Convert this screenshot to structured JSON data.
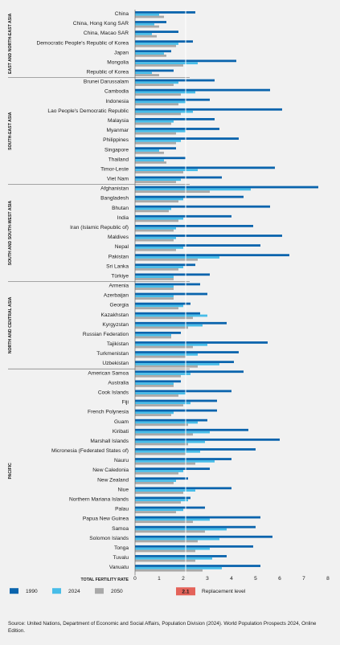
{
  "chart_data": {
    "type": "bar",
    "orientation": "horizontal",
    "xlabel": "TOTAL FERTILITY RATE",
    "xlim": [
      0,
      8
    ],
    "xticks": [
      0,
      1,
      2,
      3,
      4,
      5,
      6,
      7,
      8
    ],
    "replacement_level": {
      "value": 2.1,
      "label": "Replacement level",
      "value_label": "2.1"
    },
    "series": [
      {
        "name": "1990",
        "color": "#0a64ad"
      },
      {
        "name": "2024",
        "color": "#48bde8"
      },
      {
        "name": "2050",
        "color": "#a9a9a9"
      }
    ],
    "regions": [
      {
        "name": "EAST AND NORTH-EAST ASIA",
        "countries": [
          {
            "name": "China",
            "values": [
              2.5,
              1.0,
              1.2
            ]
          },
          {
            "name": "China, Hong Kong SAR",
            "values": [
              1.3,
              0.8,
              1.0
            ]
          },
          {
            "name": "China, Macao SAR",
            "values": [
              1.8,
              0.7,
              0.9
            ]
          },
          {
            "name": "Democratic People's Republic of Korea",
            "values": [
              2.4,
              1.8,
              1.7
            ]
          },
          {
            "name": "Japan",
            "values": [
              1.5,
              1.2,
              1.3
            ]
          },
          {
            "name": "Mongolia",
            "values": [
              4.2,
              2.6,
              2.0
            ]
          },
          {
            "name": "Republic of Korea",
            "values": [
              1.6,
              0.7,
              1.0
            ]
          }
        ]
      },
      {
        "name": "SOUTH-EAST ASIA",
        "countries": [
          {
            "name": "Brunei Darussalam",
            "values": [
              3.3,
              1.8,
              1.6
            ]
          },
          {
            "name": "Cambodia",
            "values": [
              5.6,
              2.5,
              1.9
            ]
          },
          {
            "name": "Indonesia",
            "values": [
              3.1,
              2.1,
              1.8
            ]
          },
          {
            "name": "Lao People's Democratic Republic",
            "values": [
              6.1,
              2.4,
              1.9
            ]
          },
          {
            "name": "Malaysia",
            "values": [
              3.3,
              1.6,
              1.5
            ]
          },
          {
            "name": "Myanmar",
            "values": [
              3.5,
              2.1,
              1.7
            ]
          },
          {
            "name": "Philippines",
            "values": [
              4.3,
              1.9,
              1.7
            ]
          },
          {
            "name": "Singapore",
            "values": [
              1.7,
              1.0,
              1.2
            ]
          },
          {
            "name": "Thailand",
            "values": [
              2.1,
              1.2,
              1.3
            ]
          },
          {
            "name": "Timor-Leste",
            "values": [
              5.8,
              2.6,
              2.0
            ]
          },
          {
            "name": "Viet Nam",
            "values": [
              3.6,
              1.9,
              1.7
            ]
          }
        ]
      },
      {
        "name": "SOUTH AND SOUTH-WEST ASIA",
        "countries": [
          {
            "name": "Afghanistan",
            "values": [
              7.6,
              4.8,
              3.1
            ]
          },
          {
            "name": "Bangladesh",
            "values": [
              4.5,
              2.0,
              1.8
            ]
          },
          {
            "name": "Bhutan",
            "values": [
              5.6,
              1.5,
              1.4
            ]
          },
          {
            "name": "India",
            "values": [
              4.0,
              2.0,
              1.8
            ]
          },
          {
            "name": "Iran (Islamic Republic of)",
            "values": [
              4.9,
              1.7,
              1.6
            ]
          },
          {
            "name": "Maldives",
            "values": [
              6.1,
              1.7,
              1.6
            ]
          },
          {
            "name": "Nepal",
            "values": [
              5.2,
              2.0,
              1.7
            ]
          },
          {
            "name": "Pakistan",
            "values": [
              6.4,
              3.5,
              2.6
            ]
          },
          {
            "name": "Sri Lanka",
            "values": [
              2.5,
              2.0,
              1.8
            ]
          },
          {
            "name": "Türkiye",
            "values": [
              3.1,
              1.6,
              1.6
            ]
          }
        ]
      },
      {
        "name": "NORTH AND CENTRAL ASIA",
        "countries": [
          {
            "name": "Armenia",
            "values": [
              2.7,
              1.6,
              1.6
            ]
          },
          {
            "name": "Azerbaijan",
            "values": [
              3.0,
              1.6,
              1.6
            ]
          },
          {
            "name": "Georgia",
            "values": [
              2.3,
              2.0,
              1.8
            ]
          },
          {
            "name": "Kazakhstan",
            "values": [
              2.7,
              3.0,
              2.4
            ]
          },
          {
            "name": "Kyrgyzstan",
            "values": [
              3.8,
              2.8,
              2.2
            ]
          },
          {
            "name": "Russian Federation",
            "values": [
              1.9,
              1.5,
              1.5
            ]
          },
          {
            "name": "Tajikistan",
            "values": [
              5.5,
              3.0,
              2.4
            ]
          },
          {
            "name": "Turkmenistan",
            "values": [
              4.3,
              2.6,
              2.1
            ]
          },
          {
            "name": "Uzbekistan",
            "values": [
              4.1,
              3.5,
              2.6
            ]
          }
        ]
      },
      {
        "name": "PACIFIC",
        "countries": [
          {
            "name": "American Samoa",
            "values": [
              4.5,
              2.3,
              1.9
            ]
          },
          {
            "name": "Australia",
            "values": [
              1.9,
              1.6,
              1.6
            ]
          },
          {
            "name": "Cook Islands",
            "values": [
              4.0,
              2.1,
              1.8
            ]
          },
          {
            "name": "Fiji",
            "values": [
              3.4,
              2.3,
              2.0
            ]
          },
          {
            "name": "French Polynesia",
            "values": [
              3.4,
              1.6,
              1.5
            ]
          },
          {
            "name": "Guam",
            "values": [
              3.0,
              2.6,
              2.2
            ]
          },
          {
            "name": "Kiribati",
            "values": [
              4.7,
              3.1,
              2.4
            ]
          },
          {
            "name": "Marshall Islands",
            "values": [
              6.0,
              2.9,
              2.2
            ]
          },
          {
            "name": "Micronesia (Federated States of)",
            "values": [
              5.0,
              2.7,
              2.1
            ]
          },
          {
            "name": "Nauru",
            "values": [
              4.0,
              3.3,
              2.5
            ]
          },
          {
            "name": "New Caledonia",
            "values": [
              3.1,
              2.0,
              1.8
            ]
          },
          {
            "name": "New Zealand",
            "values": [
              2.2,
              1.7,
              1.6
            ]
          },
          {
            "name": "Niue",
            "values": [
              4.0,
              2.5,
              2.0
            ]
          },
          {
            "name": "Northern Mariana Islands",
            "values": [
              2.3,
              2.2,
              1.9
            ]
          },
          {
            "name": "Palau",
            "values": [
              2.9,
              2.0,
              1.7
            ]
          },
          {
            "name": "Papua New Guinea",
            "values": [
              5.2,
              3.1,
              2.4
            ]
          },
          {
            "name": "Samoa",
            "values": [
              5.0,
              3.8,
              2.9
            ]
          },
          {
            "name": "Solomon Islands",
            "values": [
              5.7,
              3.5,
              2.6
            ]
          },
          {
            "name": "Tonga",
            "values": [
              4.9,
              3.1,
              2.5
            ]
          },
          {
            "name": "Tuvalu",
            "values": [
              3.8,
              3.2,
              2.5
            ]
          },
          {
            "name": "Vanuatu",
            "values": [
              5.2,
              3.6,
              2.8
            ]
          }
        ]
      }
    ]
  },
  "source_text": "Source: United Nations, Department of Economic and Social Affairs, Population Division (2024). World Population Prospects 2024, Online Edition."
}
